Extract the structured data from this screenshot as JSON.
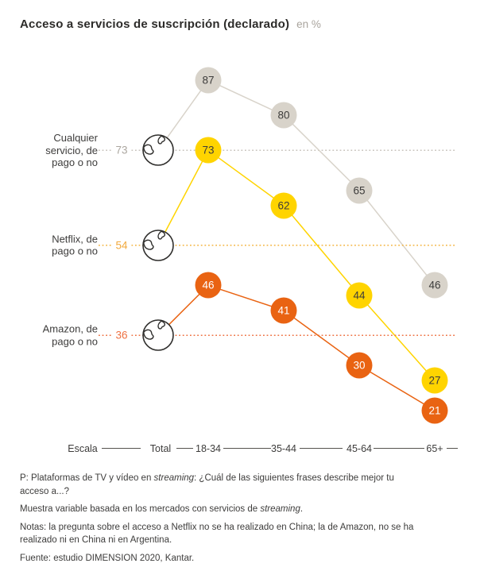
{
  "chart_data": {
    "type": "line",
    "title": "Acceso a servicios de suscripción (declarado)",
    "unit": "en %",
    "categories": [
      "Total",
      "18-34",
      "35-44",
      "45-64",
      "65+"
    ],
    "x_axis_scale_label": "Escala",
    "legend_position": "left-row-labels",
    "leader_line_style": "dotted",
    "series": [
      {
        "key": "cualquier-servicio",
        "name": "Cualquier servicio, de pago o no",
        "label": "Cualquier\nservicio, de\npago o no",
        "values": [
          73,
          87,
          80,
          65,
          46
        ],
        "color": "#d8d3ca",
        "leader_color": "#c8c3bc",
        "total_color": "#aba69f",
        "value_text_color": "#3d3c3b"
      },
      {
        "key": "netflix",
        "name": "Netflix, de pago o no",
        "label": "Netflix, de\npago o no",
        "values": [
          54,
          73,
          62,
          44,
          27
        ],
        "color": "#ffd400",
        "leader_color": "#f3b33f",
        "total_color": "#f2a93c",
        "value_text_color": "#3d3c3b"
      },
      {
        "key": "amazon",
        "name": "Amazon, de pago o no",
        "label": "Amazon, de\npago o no",
        "values": [
          36,
          46,
          41,
          30,
          21
        ],
        "color": "#e96312",
        "leader_color": "#ee7142",
        "total_color": "#ee7142",
        "value_text_color": "#ffffff"
      }
    ]
  },
  "footnotes": [
    {
      "segments": [
        {
          "text": "P: Plataformas de TV y vídeo en "
        },
        {
          "text": "streaming",
          "italic": true
        },
        {
          "text": ": ¿Cuál de las siguientes frases describe mejor tu\nacceso a...?"
        }
      ]
    },
    {
      "segments": [
        {
          "text": "Muestra variable basada en los mercados con servicios de "
        },
        {
          "text": "streaming",
          "italic": true
        },
        {
          "text": "."
        }
      ]
    },
    {
      "segments": [
        {
          "text": "Notas: la pregunta sobre el acceso a Netflix no se ha realizado en China; la de Amazon, no se ha\nrealizado ni en China ni en Argentina."
        }
      ]
    },
    {
      "segments": [
        {
          "text": "Fuente: estudio DIMENSION 2020, Kantar."
        }
      ]
    }
  ]
}
